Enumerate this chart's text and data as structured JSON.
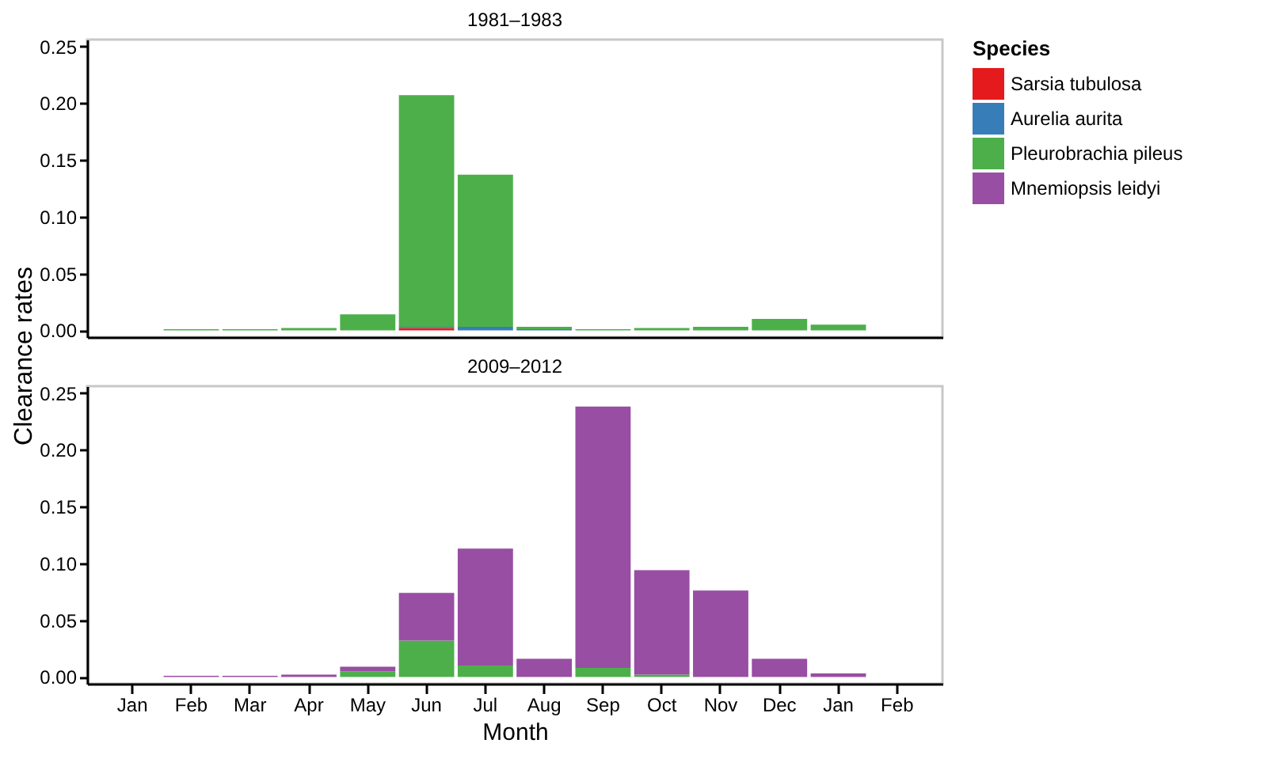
{
  "chart_data": [
    {
      "type": "bar",
      "title": "1981–1983",
      "ylabel": "Clearance rates",
      "legend_title": "Species",
      "legend": "right",
      "stacked": true,
      "grid": false,
      "tick_labels": "y",
      "categories": [
        "Jan",
        "Feb",
        "Mar",
        "Apr",
        "May",
        "Jun",
        "Jul",
        "Aug",
        "Sep",
        "Oct",
        "Nov",
        "Dec",
        "Jan",
        "Feb"
      ],
      "ylim": [
        -0.006,
        0.256
      ],
      "yticks": [
        {
          "value": 0,
          "label": "0.00"
        },
        0.05,
        {
          "value": 0.1,
          "label": "0.10"
        },
        0.15,
        {
          "value": 0.2,
          "label": "0.20"
        },
        0.25
      ],
      "series": [
        {
          "name": "Sarsia tubulosa",
          "color": "#e41a1c",
          "values": [
            null,
            null,
            null,
            null,
            null,
            0.002,
            null,
            null,
            null,
            null,
            null,
            null,
            null,
            null
          ]
        },
        {
          "name": "Aurelia aurita",
          "color": "#377eb8",
          "values": [
            null,
            null,
            null,
            null,
            null,
            0.001,
            0.003,
            0.001,
            null,
            null,
            null,
            null,
            null,
            null
          ]
        },
        {
          "name": "Pleurobrachia pileus",
          "color": "#4daf4a",
          "values": [
            null,
            0.001,
            0.001,
            0.002,
            0.014,
            0.204,
            0.134,
            0.002,
            0.001,
            0.002,
            0.003,
            0.01,
            0.005,
            null
          ]
        }
      ]
    },
    {
      "type": "bar",
      "title": "2009–2012",
      "xlabel": "Month",
      "stacked": true,
      "grid": false,
      "categories": [
        "Jan",
        "Feb",
        "Mar",
        "Apr",
        "May",
        "Jun",
        "Jul",
        "Aug",
        "Sep",
        "Oct",
        "Nov",
        "Dec",
        "Jan",
        "Feb"
      ],
      "ylim": [
        -0.006,
        0.256
      ],
      "yticks": [
        {
          "value": 0,
          "label": "0.00"
        },
        0.05,
        {
          "value": 0.1,
          "label": "0.10"
        },
        0.15,
        {
          "value": 0.2,
          "label": "0.20"
        },
        0.25
      ],
      "series": [
        {
          "name": "Pleurobrachia pileus",
          "color": "#4daf4a",
          "values": [
            null,
            null,
            null,
            null,
            0.005,
            0.032,
            0.01,
            null,
            0.008,
            0.002,
            null,
            null,
            null,
            null
          ]
        },
        {
          "name": "Mnemiopsis leidyi",
          "color": "#984ea3",
          "values": [
            null,
            0.001,
            0.001,
            0.002,
            0.004,
            0.042,
            0.103,
            0.016,
            0.23,
            0.092,
            0.076,
            0.016,
            0.003,
            null
          ]
        }
      ]
    }
  ]
}
